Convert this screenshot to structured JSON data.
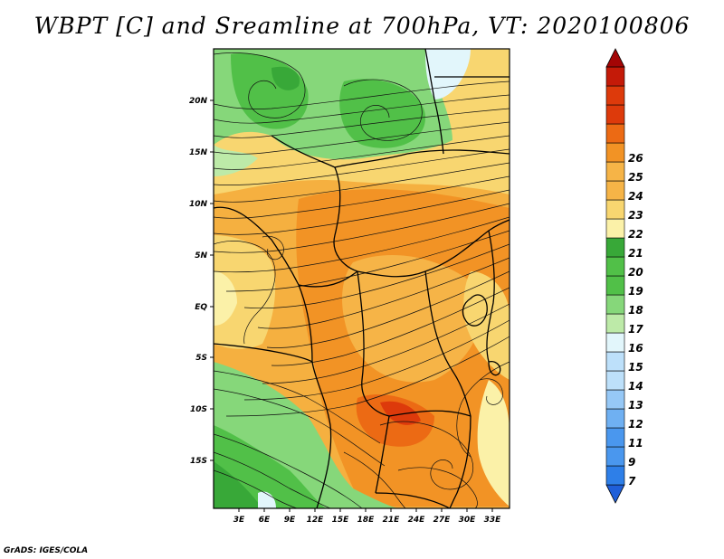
{
  "title": "WBPT [C] and Sreamline at 700hPa, VT: 2020100806",
  "credit": "GrADS: IGES/COLA",
  "map": {
    "lon_ticks": [
      "3E",
      "6E",
      "9E",
      "12E",
      "15E",
      "18E",
      "21E",
      "24E",
      "27E",
      "30E",
      "33E"
    ],
    "lat_ticks": [
      "20N",
      "15N",
      "10N",
      "5N",
      "EQ",
      "5S",
      "10S",
      "15S"
    ]
  },
  "colorbar": {
    "labels": [
      "7",
      "9",
      "11",
      "12",
      "13",
      "14",
      "15",
      "16",
      "17",
      "18",
      "19",
      "20",
      "21",
      "22",
      "23",
      "24",
      "25",
      "26"
    ],
    "colors": [
      "#1f5fd9",
      "#2e7fe8",
      "#4a97ee",
      "#6fb0f2",
      "#96c8f6",
      "#bde0fa",
      "#e2f6fb",
      "#bdeaa8",
      "#86d77a",
      "#51c048",
      "#38a838",
      "#fbf1a8",
      "#f8d670",
      "#f6b447",
      "#f29325",
      "#ec6a14",
      "#dd3a0b",
      "#c41a08",
      "#a30505"
    ]
  }
}
